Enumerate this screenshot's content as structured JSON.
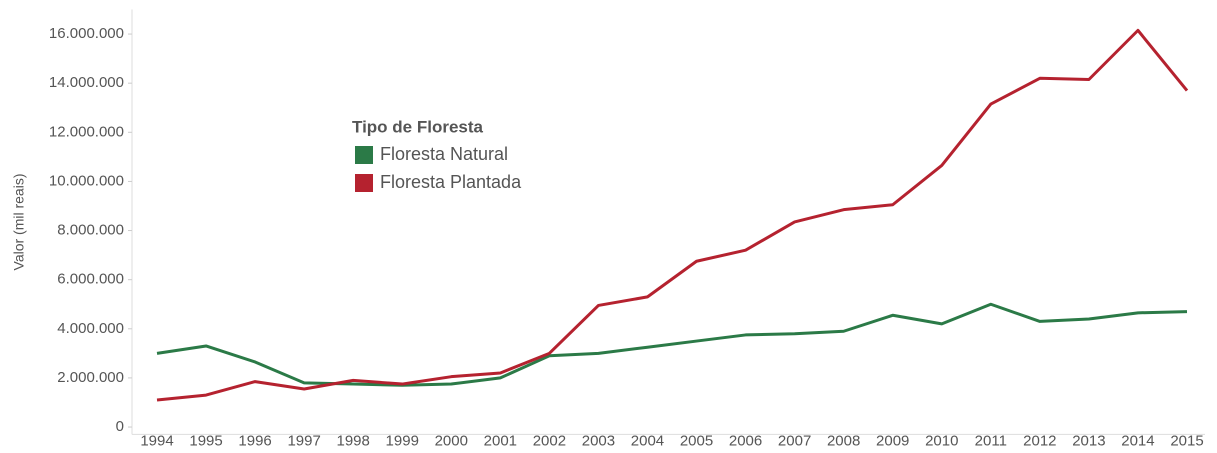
{
  "chart_data": {
    "type": "line",
    "ylabel": "Valor (mil reais)",
    "legend_title": "Tipo de Floresta",
    "categories": [
      "1994",
      "1995",
      "1996",
      "1997",
      "1998",
      "1999",
      "2000",
      "2001",
      "2002",
      "2003",
      "2004",
      "2005",
      "2006",
      "2007",
      "2008",
      "2009",
      "2010",
      "2011",
      "2012",
      "2013",
      "2014",
      "2015"
    ],
    "series": [
      {
        "name": "Floresta Natural",
        "color": "#2b7a47",
        "values": [
          3000000,
          3300000,
          2650000,
          1800000,
          1750000,
          1700000,
          1750000,
          2000000,
          2900000,
          3000000,
          3250000,
          3500000,
          3750000,
          3800000,
          3900000,
          4550000,
          4200000,
          5000000,
          4300000,
          4400000,
          4650000,
          4700000
        ]
      },
      {
        "name": "Floresta Plantada",
        "color": "#b5222f",
        "values": [
          1100000,
          1300000,
          1850000,
          1550000,
          1900000,
          1750000,
          2050000,
          2200000,
          3000000,
          4950000,
          5300000,
          6750000,
          7200000,
          8350000,
          8850000,
          9050000,
          10650000,
          13150000,
          14200000,
          14150000,
          16150000,
          13700000
        ]
      }
    ],
    "ylim": [
      -300000,
      17000000
    ],
    "yticks": [
      0,
      {
        "value": 2000000,
        "label": "2.000.000"
      },
      {
        "value": 4000000,
        "label": "4.000.000"
      },
      {
        "value": 6000000,
        "label": "6.000.000"
      },
      {
        "value": 8000000,
        "label": "8.000.000"
      },
      {
        "value": 10000000,
        "label": "10.000.000"
      },
      {
        "value": 12000000,
        "label": "12.000.000"
      },
      {
        "value": 14000000,
        "label": "14.000.000"
      },
      {
        "value": 16000000,
        "label": "16.000.000"
      }
    ]
  }
}
